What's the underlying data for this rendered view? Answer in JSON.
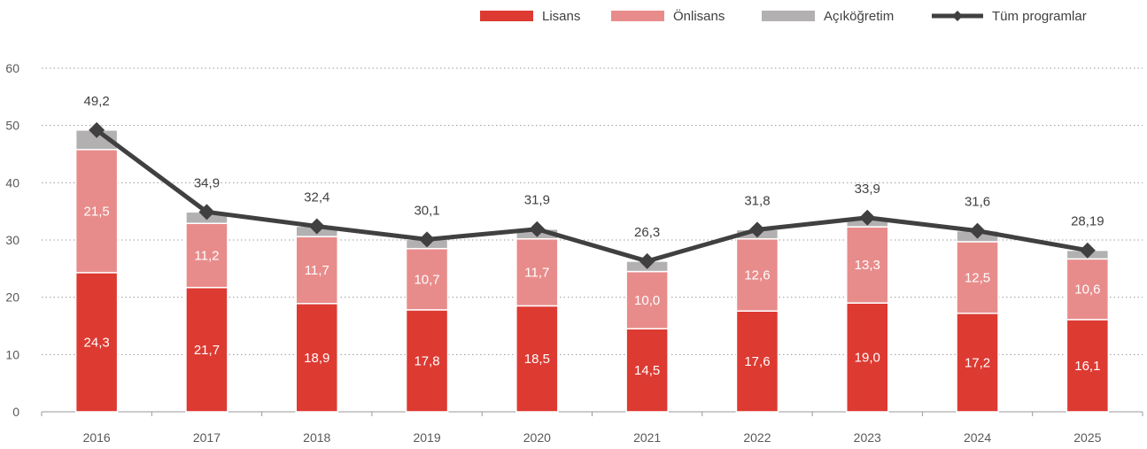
{
  "chart_data": {
    "type": "bar",
    "stacked": true,
    "categories": [
      "2016",
      "2017",
      "2018",
      "2019",
      "2020",
      "2021",
      "2022",
      "2023",
      "2024",
      "2025"
    ],
    "series": [
      {
        "name": "Lisans",
        "values": [
          24.3,
          21.7,
          18.9,
          17.8,
          18.5,
          14.5,
          17.6,
          19.0,
          17.2,
          16.1
        ],
        "labels": [
          "24,3",
          "21,7",
          "18,9",
          "17,8",
          "18,5",
          "14,5",
          "17,6",
          "19,0",
          "17,2",
          "16,1"
        ],
        "color": "#dd3a32"
      },
      {
        "name": "Önlisans",
        "values": [
          21.5,
          11.2,
          11.7,
          10.7,
          11.7,
          10.0,
          12.6,
          13.3,
          12.5,
          10.6
        ],
        "labels": [
          "21,5",
          "11,2",
          "11,7",
          "10,7",
          "11,7",
          "10,0",
          "12,6",
          "13,3",
          "12,5",
          "10,6"
        ],
        "color": "#e88c8b"
      },
      {
        "name": "Açıköğretim",
        "values": [
          3.4,
          2.0,
          1.8,
          1.6,
          1.7,
          1.8,
          1.6,
          1.6,
          1.9,
          1.5
        ],
        "color": "#b2b0b0"
      }
    ],
    "line": {
      "name": "Tüm programlar",
      "values": [
        49.2,
        34.9,
        32.4,
        30.1,
        31.9,
        26.3,
        31.8,
        33.9,
        31.6,
        28.19
      ],
      "labels": [
        "49,2",
        "34,9",
        "32,4",
        "30,1",
        "31,9",
        "26,3",
        "31,8",
        "33,9",
        "31,6",
        "28,19"
      ],
      "color": "#404040"
    },
    "ylim": [
      0,
      60
    ],
    "yticks": [
      "0",
      "10",
      "20",
      "30",
      "40",
      "50",
      "60"
    ],
    "grid": true,
    "legend_position": "top"
  }
}
